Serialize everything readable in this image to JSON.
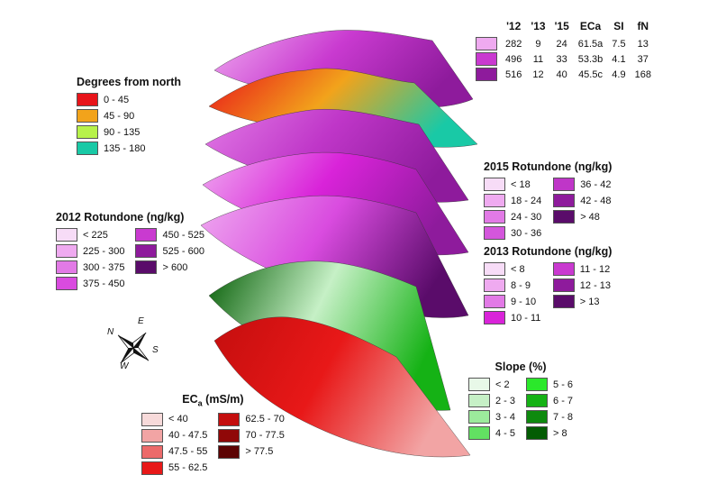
{
  "legends": {
    "degrees": {
      "title": "Degrees from north",
      "items": [
        {
          "label": "0 - 45",
          "color": "#e8141a"
        },
        {
          "label": "45 - 90",
          "color": "#f2a31b"
        },
        {
          "label": "90 - 135",
          "color": "#b7f24a"
        },
        {
          "label": "135 - 180",
          "color": "#19c9a6"
        }
      ]
    },
    "rot2012": {
      "title": "2012 Rotundone (ng/kg)",
      "items": [
        {
          "label": "< 225",
          "color": "#f7dcf7"
        },
        {
          "label": "450 - 525",
          "color": "#c93ad0"
        },
        {
          "label": "225 - 300",
          "color": "#efaaf0"
        },
        {
          "label": "525 - 600",
          "color": "#8e1b9c"
        },
        {
          "label": "300 - 375",
          "color": "#e27ae6"
        },
        {
          "label": "> 600",
          "color": "#5a0c6a"
        },
        {
          "label": "375 - 450",
          "color": "#d94bdf"
        }
      ]
    },
    "rot2015": {
      "title": "2015 Rotundone (ng/kg)",
      "items": [
        {
          "label": "< 18",
          "color": "#f7dcf7"
        },
        {
          "label": "36 - 42",
          "color": "#bf36c8"
        },
        {
          "label": "18 - 24",
          "color": "#efaaf0"
        },
        {
          "label": "42 - 48",
          "color": "#8e1b9c"
        },
        {
          "label": "24 - 30",
          "color": "#e27ae6"
        },
        {
          "label": "> 48",
          "color": "#5a0c6a"
        },
        {
          "label": "30 - 36",
          "color": "#d456dc"
        }
      ]
    },
    "rot2013": {
      "title": "2013 Rotundone (ng/kg)",
      "items": [
        {
          "label": "< 8",
          "color": "#f7dcf7"
        },
        {
          "label": "11 - 12",
          "color": "#c93ad0"
        },
        {
          "label": "8 - 9",
          "color": "#efaaf0"
        },
        {
          "label": "12 - 13",
          "color": "#8e1b9c"
        },
        {
          "label": "9 - 10",
          "color": "#e27ae6"
        },
        {
          "label": "> 13",
          "color": "#5a0c6a"
        },
        {
          "label": "10 - 11",
          "color": "#d923d9"
        }
      ]
    },
    "slope": {
      "title": "Slope (%)",
      "items": [
        {
          "label": "< 2",
          "color": "#e8f8e8"
        },
        {
          "label": "5 - 6",
          "color": "#2be82b"
        },
        {
          "label": "2 - 3",
          "color": "#c6f0c6"
        },
        {
          "label": "6 - 7",
          "color": "#15b215"
        },
        {
          "label": "3 - 4",
          "color": "#9ceb9c"
        },
        {
          "label": "7 - 8",
          "color": "#0e8a0e"
        },
        {
          "label": "4 - 5",
          "color": "#62e062"
        },
        {
          "label": "> 8",
          "color": "#045c04"
        }
      ]
    },
    "eca": {
      "title_main": "EC",
      "title_sub": "a",
      "title_unit": " (mS/m)",
      "items": [
        {
          "label": "< 40",
          "color": "#f7dada"
        },
        {
          "label": "62.5 - 70",
          "color": "#c40e0e"
        },
        {
          "label": "40 - 47.5",
          "color": "#f2a4a4"
        },
        {
          "label": "70 - 77.5",
          "color": "#900808"
        },
        {
          "label": "47.5 - 55",
          "color": "#ec6a6a"
        },
        {
          "label": "> 77.5",
          "color": "#5c0404"
        },
        {
          "label": "55 - 62.5",
          "color": "#e81818"
        }
      ]
    }
  },
  "zone_table": {
    "headers": [
      "'12",
      "'13",
      "'15",
      "ECa",
      "SI",
      "fN"
    ],
    "rows": [
      {
        "color": "#efaaf0",
        "values": [
          "282",
          "9",
          "24",
          "61.5a",
          "7.5",
          "13"
        ]
      },
      {
        "color": "#c93ad0",
        "values": [
          "496",
          "11",
          "33",
          "53.3b",
          "4.1",
          "37"
        ]
      },
      {
        "color": "#8e1b9c",
        "values": [
          "516",
          "12",
          "40",
          "45.5c",
          "4.9",
          "168"
        ]
      }
    ]
  },
  "compass": {
    "n": "N",
    "e": "E",
    "s": "S",
    "w": "W"
  },
  "layers": [
    {
      "id": "zones",
      "colors": [
        "#efaaf0",
        "#c93ad0",
        "#8e1b9c"
      ]
    },
    {
      "id": "aspect",
      "colors": [
        "#e8141a",
        "#f2a31b",
        "#19c9a6"
      ]
    },
    {
      "id": "rot2015",
      "colors": [
        "#e27ae6",
        "#bf36c8",
        "#8e1b9c"
      ]
    },
    {
      "id": "rot2013",
      "colors": [
        "#efaaf0",
        "#d923d9",
        "#8e1b9c"
      ]
    },
    {
      "id": "rot2012",
      "colors": [
        "#efaaf0",
        "#d94bdf",
        "#5a0c6a"
      ]
    },
    {
      "id": "slope",
      "colors": [
        "#045c04",
        "#c6f0c6",
        "#15b215"
      ]
    },
    {
      "id": "eca",
      "colors": [
        "#c40e0e",
        "#e81818",
        "#f2a4a4"
      ]
    }
  ]
}
